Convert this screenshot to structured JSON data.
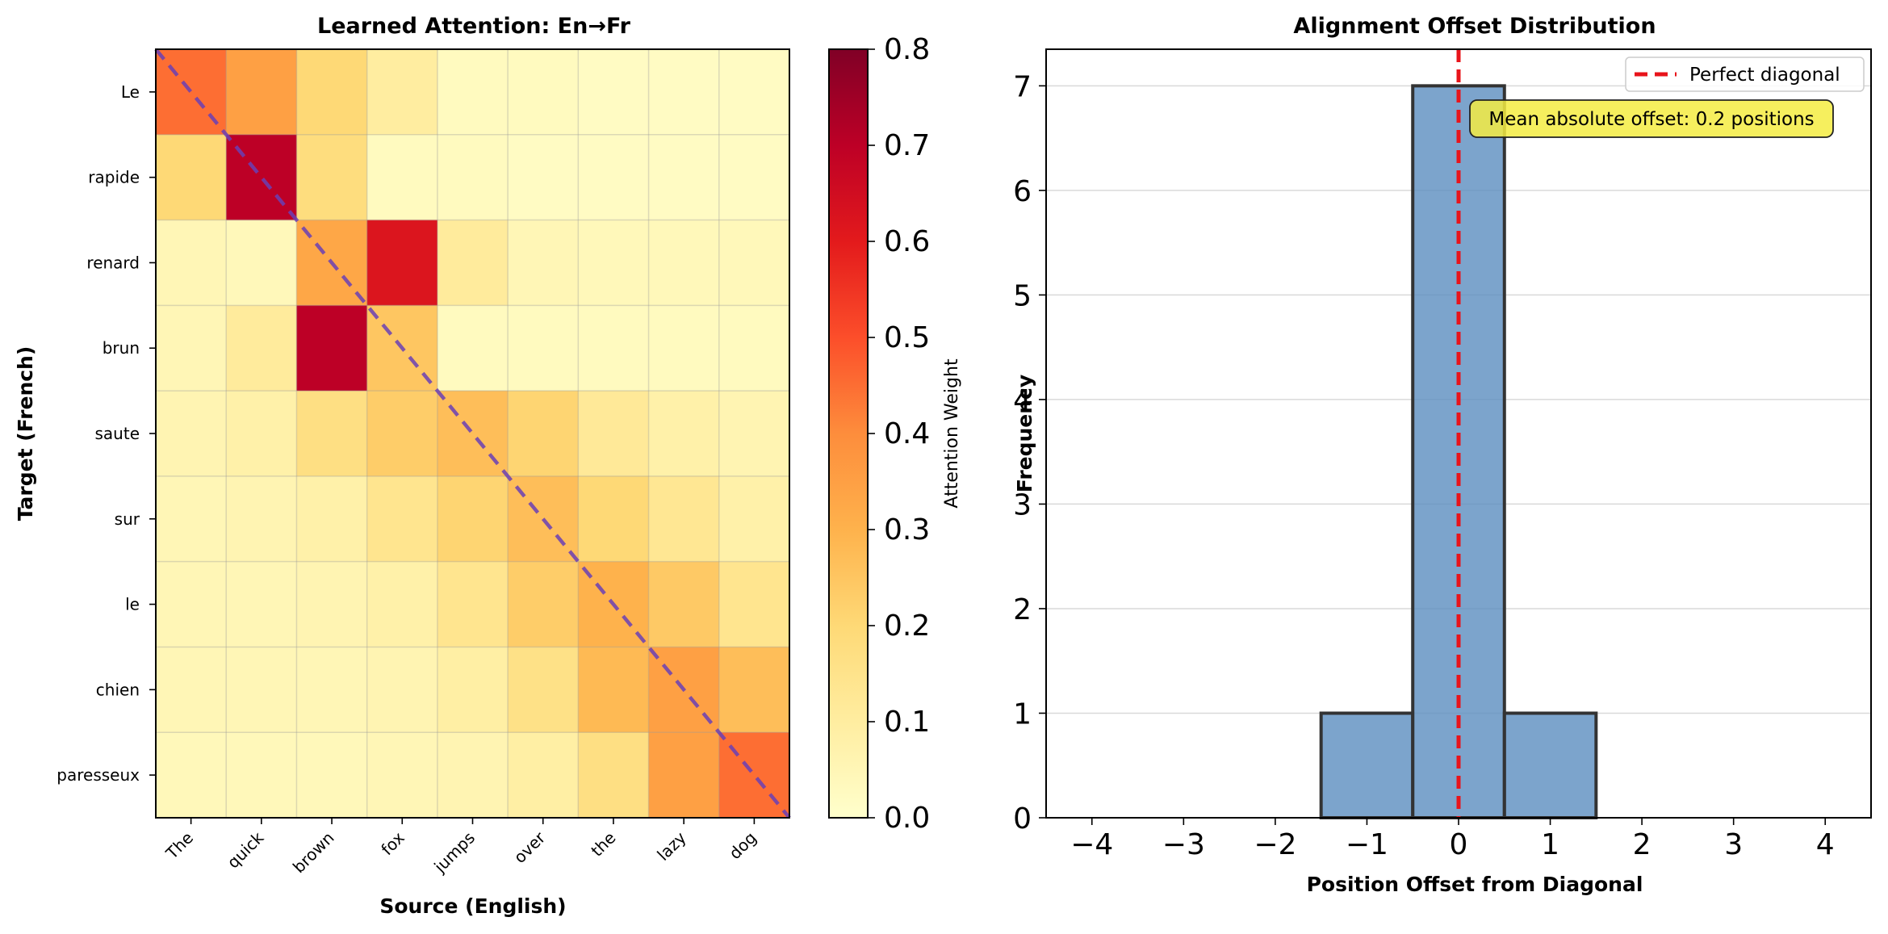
{
  "chart_data": [
    {
      "type": "heatmap",
      "title": "Learned Attention: En→Fr",
      "xlabel": "Source (English)",
      "ylabel": "Target (French)",
      "x_labels": [
        "The",
        "quick",
        "brown",
        "fox",
        "jumps",
        "over",
        "the",
        "lazy",
        "dog"
      ],
      "y_labels": [
        "Le",
        "rapide",
        "renard",
        "brun",
        "saute",
        "sur",
        "le",
        "chien",
        "paresseux"
      ],
      "values": [
        [
          0.45,
          0.35,
          0.2,
          0.1,
          0.03,
          0.03,
          0.02,
          0.02,
          0.02
        ],
        [
          0.2,
          0.7,
          0.18,
          0.03,
          0.03,
          0.02,
          0.02,
          0.02,
          0.02
        ],
        [
          0.05,
          0.04,
          0.33,
          0.62,
          0.11,
          0.05,
          0.04,
          0.04,
          0.04
        ],
        [
          0.05,
          0.11,
          0.7,
          0.25,
          0.03,
          0.03,
          0.03,
          0.03,
          0.03
        ],
        [
          0.06,
          0.08,
          0.17,
          0.23,
          0.27,
          0.21,
          0.12,
          0.08,
          0.06
        ],
        [
          0.05,
          0.06,
          0.08,
          0.14,
          0.21,
          0.27,
          0.2,
          0.13,
          0.08
        ],
        [
          0.05,
          0.05,
          0.06,
          0.08,
          0.14,
          0.23,
          0.3,
          0.24,
          0.14
        ],
        [
          0.05,
          0.05,
          0.05,
          0.06,
          0.09,
          0.16,
          0.28,
          0.35,
          0.27
        ],
        [
          0.04,
          0.04,
          0.04,
          0.05,
          0.06,
          0.09,
          0.17,
          0.35,
          0.45
        ]
      ],
      "diagonal_line": {
        "color": "#6a3fb5",
        "style": "dashed"
      },
      "colormap": "YlOrRd",
      "colorbar": {
        "label": "Attention Weight",
        "range": [
          0.0,
          0.8
        ],
        "ticks": [
          0.0,
          0.1,
          0.2,
          0.3,
          0.4,
          0.5,
          0.6,
          0.7,
          0.8
        ],
        "tick_labels": [
          "0.0",
          "0.1",
          "0.2",
          "0.3",
          "0.4",
          "0.5",
          "0.6",
          "0.7",
          "0.8"
        ]
      },
      "grid": true
    },
    {
      "type": "bar",
      "title": "Alignment Offset Distribution",
      "xlabel": "Position Offset from Diagonal",
      "ylabel": "Frequency",
      "categories": [
        -4,
        -3,
        -2,
        -1,
        0,
        1,
        2,
        3,
        4
      ],
      "values": [
        0,
        0,
        0,
        1,
        7,
        1,
        0,
        0,
        0
      ],
      "bar_color": "#5b8dbf",
      "xlim": [
        -4.5,
        4.5
      ],
      "ylim": [
        0,
        7.35
      ],
      "x_ticks": [
        -4,
        -3,
        -2,
        -1,
        0,
        1,
        2,
        3,
        4
      ],
      "x_tick_labels": [
        "−4",
        "−3",
        "−2",
        "−1",
        "0",
        "1",
        "2",
        "3",
        "4"
      ],
      "y_ticks": [
        0,
        1,
        2,
        3,
        4,
        5,
        6,
        7
      ],
      "y_tick_labels": [
        "0",
        "1",
        "2",
        "3",
        "4",
        "5",
        "6",
        "7"
      ],
      "vline": {
        "x": 0,
        "color": "#e8141b",
        "style": "dashed",
        "label": "Perfect diagonal"
      },
      "legend": {
        "position": "top-right",
        "entries": [
          "Perfect diagonal"
        ]
      },
      "annotation": {
        "text": "Mean absolute offset: 0.2 positions",
        "background": "#f5ec42"
      },
      "grid": "y"
    }
  ]
}
